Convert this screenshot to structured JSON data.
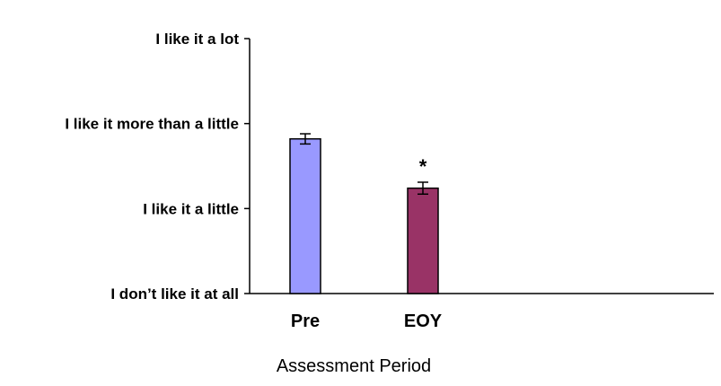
{
  "chart_data": {
    "type": "bar",
    "title": "",
    "xlabel": "Assessment Period",
    "ylabel": "",
    "categories": [
      "Pre",
      "EOY"
    ],
    "values": [
      2.82,
      2.24
    ],
    "errors": [
      0.06,
      0.07
    ],
    "colors": [
      "#9999ff",
      "#993366"
    ],
    "ylim": [
      1,
      4
    ],
    "yticks": [
      {
        "value": 1,
        "label": "I don’t like it at all"
      },
      {
        "value": 2,
        "label": "I like it a little"
      },
      {
        "value": 3,
        "label": "I like it more than a little"
      },
      {
        "value": 4,
        "label": "I like it a lot"
      }
    ],
    "annotations": [
      {
        "category": "EOY",
        "text": "*"
      }
    ],
    "legend": "none",
    "grid": false
  }
}
